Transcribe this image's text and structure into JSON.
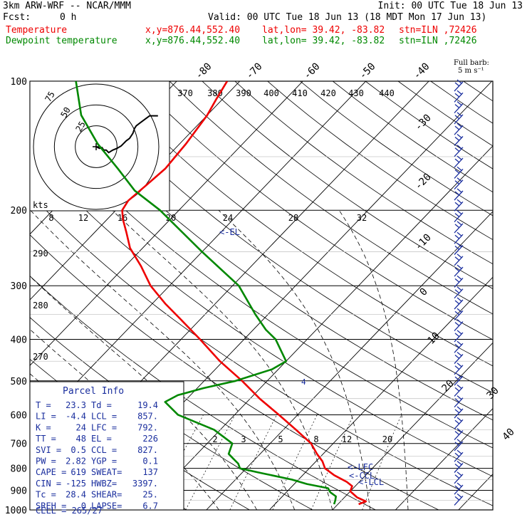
{
  "header": {
    "model": "3km ARW-WRF -- NCAR/MMM",
    "init": "Init: 00 UTC Tue 18 Jun 13",
    "fcst_label": "Fcst:",
    "fcst_value": "0 h",
    "valid": "Valid: 00 UTC Tue 18 Jun 13 (18 MDT Mon 17 Jun 13)",
    "temp_label": "Temperature",
    "dew_label": "Dewpoint temperature",
    "xy": "x,y=876.44,552.40",
    "latlon": "lat,lon= 39.42, -83.82",
    "stn": "stn=ILN ,72426",
    "barb_note_1": "Full barb:",
    "barb_note_2": "5 m s⁻¹"
  },
  "colors": {
    "temperature": "#ee0000",
    "dewpoint": "#008800",
    "index_text": "#1a2e9e",
    "barbs": "#1a2e9e"
  },
  "chart_data": {
    "type": "line",
    "title": "",
    "xlabel": "",
    "ylabel": "",
    "y_scale": "log-pressure",
    "ylim": [
      1000,
      100
    ],
    "pressure_ticks": [
      "100",
      "200",
      "300",
      "400",
      "500",
      "600",
      "700",
      "800",
      "900",
      "1000"
    ],
    "pressure_values": [
      100,
      200,
      300,
      400,
      500,
      600,
      700,
      800,
      900,
      1000
    ],
    "isotherm_labels_top": [
      "-80",
      "-70",
      "-60",
      "-50",
      "-40"
    ],
    "isotherm_labels_right": [
      "-30",
      "-20",
      "-10",
      "0",
      "10",
      "20",
      "30",
      "40"
    ],
    "theta_labels_top": [
      "370",
      "380",
      "390",
      "400",
      "410",
      "420",
      "430",
      "440"
    ],
    "theta_labels_left": [
      "290",
      "280",
      "270"
    ],
    "theta_e_labels": [
      "8",
      "12",
      "16",
      "20",
      "24",
      "28",
      "32"
    ],
    "mixing_ratio_labels": [
      "2",
      "3",
      "5",
      "8",
      "12",
      "20"
    ],
    "series": [
      {
        "name": "Temperature",
        "pressure": [
          970,
          955,
          935,
          905,
          880,
          860,
          830,
          800,
          770,
          740,
          700,
          650,
          600,
          550,
          500,
          450,
          400,
          360,
          330,
          300,
          270,
          245,
          225,
          210,
          200,
          190,
          175,
          160,
          140,
          120,
          110,
          100
        ],
        "temperature": [
          23.3,
          24,
          22,
          20,
          19.5,
          18,
          15,
          12.5,
          11,
          9,
          6.5,
          2,
          -3,
          -8.5,
          -14,
          -20.5,
          -27,
          -33,
          -38,
          -43,
          -47.5,
          -52,
          -55,
          -57.5,
          -59,
          -59.5,
          -59,
          -58.5,
          -59,
          -60,
          -61,
          -62
        ]
      },
      {
        "name": "Dewpoint temperature",
        "pressure": [
          970,
          950,
          930,
          910,
          890,
          870,
          850,
          820,
          800,
          780,
          760,
          740,
          700,
          650,
          600,
          560,
          540,
          520,
          500,
          470,
          450,
          400,
          380,
          350,
          300,
          250,
          200,
          180,
          160,
          140,
          120,
          100
        ],
        "temperature": [
          19.4,
          19,
          18.5,
          17,
          16,
          12,
          9,
          3,
          -1,
          -2,
          -3.5,
          -5,
          -6,
          -11,
          -19,
          -23,
          -22,
          -19,
          -15,
          -11,
          -10,
          -15,
          -18,
          -22,
          -29,
          -40,
          -53,
          -60,
          -66,
          -73,
          -80,
          -86
        ]
      }
    ],
    "hodograph": {
      "title": "kts",
      "ring_labels": [
        "75",
        "50",
        "25"
      ],
      "trace_u": [
        0,
        4,
        7,
        9,
        12,
        15,
        20,
        25,
        30,
        33,
        36,
        40,
        42,
        44,
        45,
        46,
        48,
        52,
        56,
        60,
        64,
        68,
        74
      ],
      "trace_v": [
        0,
        -2,
        -1,
        -4,
        -4,
        -7,
        -4,
        -2,
        1,
        4,
        7,
        10,
        13,
        16,
        19,
        22,
        25,
        28,
        31,
        34,
        37,
        37,
        37
      ]
    },
    "annotations": {
      "el": "<-EL",
      "lfc": "<-LFC",
      "ccl": "<-CCL",
      "lcl": "<-LCL",
      "freezing_mark": "4"
    }
  },
  "parcel_info": {
    "title": "Parcel Info",
    "rows": [
      [
        "T  =",
        "23.3",
        "Td =",
        "19.4"
      ],
      [
        "LI =",
        "-4.4",
        "LCL =",
        "857."
      ],
      [
        "K  =",
        "24",
        "LFC =",
        "792."
      ],
      [
        "TT =",
        "48",
        "EL =",
        "226"
      ],
      [
        "SVI =",
        "0.5",
        "CCL =",
        "827."
      ],
      [
        "PW =",
        "2.82",
        "YGP =",
        "0.1"
      ],
      [
        "CAPE =",
        "619",
        "SWEAT=",
        "137"
      ],
      [
        "CIN =",
        "-125",
        "HWBZ=",
        "3397."
      ],
      [
        "Tc =",
        "28.4",
        "SHEAR=",
        "25."
      ],
      [
        "SREH =",
        "0",
        "LAPSE=",
        "6.7"
      ]
    ],
    "cell": "CELL = 265/27"
  }
}
